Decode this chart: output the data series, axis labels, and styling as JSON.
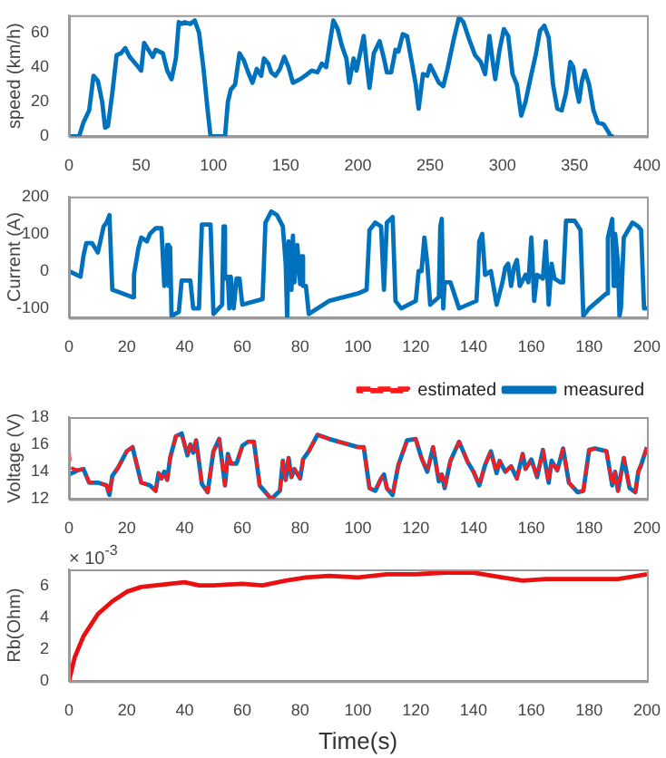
{
  "chart_data": [
    {
      "type": "line",
      "ylabel": "speed (km/h)",
      "xlim": [
        0,
        400
      ],
      "xticks": [
        0,
        50,
        100,
        150,
        200,
        250,
        300,
        350,
        400
      ],
      "ylim": [
        0,
        70
      ],
      "yticks": [
        0,
        20,
        40,
        60
      ],
      "marker": "none",
      "legend": false,
      "series": [
        {
          "color": "#0072bd",
          "line_style": "solid",
          "x": [
            0,
            7,
            10,
            14,
            17,
            20,
            23,
            25,
            27,
            30,
            33,
            36,
            39,
            42,
            45,
            48,
            50,
            52,
            55,
            58,
            60,
            65,
            68,
            71,
            74,
            76,
            78,
            80,
            84,
            87,
            90,
            93,
            96,
            98,
            108,
            110,
            112,
            115,
            118,
            121,
            124,
            127,
            130,
            133,
            135,
            138,
            140,
            143,
            146,
            149,
            152,
            155,
            160,
            165,
            168,
            172,
            175,
            178,
            180,
            183,
            186,
            189,
            192,
            194,
            197,
            199,
            202,
            204,
            206,
            208,
            211,
            215,
            218,
            220,
            223,
            226,
            228,
            231,
            234,
            237,
            240,
            242,
            245,
            248,
            250,
            253,
            256,
            259,
            262,
            266,
            270,
            273,
            277,
            281,
            285,
            288,
            291,
            293,
            295,
            298,
            301,
            304,
            307,
            310,
            313,
            316,
            319,
            323,
            326,
            329,
            332,
            335,
            338,
            341,
            344,
            347,
            349,
            351,
            353,
            355,
            357,
            360,
            363,
            366,
            370,
            373,
            375,
            377
          ],
          "values": [
            0,
            0,
            8,
            15,
            35,
            32,
            20,
            5,
            6,
            25,
            47,
            48,
            51,
            46,
            43,
            40,
            38,
            54,
            50,
            46,
            50,
            48,
            38,
            33,
            45,
            66,
            65,
            66,
            65,
            67,
            60,
            40,
            15,
            0,
            0,
            20,
            27,
            30,
            48,
            44,
            37,
            31,
            39,
            35,
            45,
            42,
            37,
            35,
            39,
            46,
            40,
            31,
            33,
            36,
            38,
            37,
            42,
            40,
            51,
            67,
            62,
            52,
            45,
            31,
            45,
            38,
            50,
            58,
            42,
            28,
            48,
            55,
            45,
            37,
            37,
            50,
            49,
            59,
            58,
            44,
            30,
            16,
            36,
            35,
            41,
            36,
            31,
            29,
            39,
            55,
            69,
            66,
            56,
            47,
            43,
            36,
            58,
            45,
            33,
            50,
            62,
            58,
            36,
            30,
            12,
            20,
            32,
            47,
            61,
            64,
            57,
            30,
            16,
            15,
            25,
            43,
            40,
            28,
            20,
            32,
            38,
            30,
            15,
            8,
            7,
            3,
            0,
            0
          ]
        }
      ]
    },
    {
      "type": "line",
      "ylabel": "Current (A)",
      "xlim": [
        0,
        200
      ],
      "xticks": [
        0,
        20,
        40,
        60,
        80,
        100,
        120,
        140,
        160,
        180,
        200
      ],
      "ylim": [
        -125,
        200
      ],
      "yticks": [
        -100,
        0,
        100,
        200
      ],
      "marker": "none",
      "legend": false,
      "series": [
        {
          "color": "#0072bd",
          "line_style": "solid",
          "x": [
            0,
            4,
            5,
            6,
            8,
            10,
            12,
            13,
            14,
            15,
            22,
            22.5,
            24,
            25,
            27,
            28,
            30,
            32,
            33,
            34,
            34.5,
            35,
            35.5,
            38,
            39,
            42,
            43,
            45,
            45.5,
            46,
            49,
            50,
            53,
            53.5,
            54,
            55,
            55.5,
            56,
            57,
            58,
            59,
            60,
            67,
            68,
            70,
            72,
            74,
            75,
            75.5,
            76,
            77,
            77.5,
            78,
            79,
            80,
            80.5,
            81,
            82,
            83,
            90,
            100,
            103,
            104,
            106,
            108,
            109,
            110,
            112,
            113,
            115,
            120,
            121,
            122,
            123,
            124,
            125,
            128,
            128.5,
            129,
            129.5,
            130,
            132,
            135,
            141,
            141.5,
            142,
            143,
            144,
            146,
            148,
            150,
            151,
            152,
            153,
            154,
            155,
            156,
            158,
            159,
            160,
            161,
            162,
            164,
            165,
            166,
            167,
            168,
            170,
            171,
            172,
            175,
            177,
            178,
            180,
            183,
            186,
            186.5,
            188,
            188.5,
            189,
            190,
            190.5,
            191,
            192,
            195,
            197,
            198,
            199,
            200
          ],
          "values": [
            0,
            -15,
            40,
            75,
            75,
            50,
            120,
            130,
            150,
            -50,
            -70,
            -10,
            60,
            90,
            80,
            100,
            115,
            115,
            -40,
            70,
            -40,
            65,
            -120,
            -110,
            -25,
            -25,
            -100,
            -100,
            20,
            125,
            125,
            -115,
            -90,
            120,
            -20,
            -15,
            -100,
            -15,
            -100,
            -20,
            -20,
            -90,
            -75,
            130,
            160,
            150,
            120,
            20,
            -125,
            80,
            -50,
            95,
            -30,
            70,
            -35,
            40,
            -40,
            -40,
            -115,
            -80,
            -60,
            -50,
            110,
            130,
            120,
            -50,
            130,
            145,
            -80,
            -100,
            -80,
            0,
            0,
            90,
            20,
            -90,
            -70,
            120,
            140,
            -100,
            -30,
            -30,
            -100,
            -80,
            -10,
            80,
            100,
            -10,
            0,
            -90,
            -30,
            10,
            20,
            -40,
            10,
            30,
            -40,
            -10,
            -30,
            90,
            -80,
            -10,
            -20,
            80,
            -90,
            20,
            -20,
            -30,
            -30,
            135,
            135,
            110,
            -120,
            -100,
            -80,
            -60,
            90,
            140,
            -40,
            100,
            20,
            -120,
            -100,
            90,
            130,
            120,
            110,
            -100,
            -100
          ]
        }
      ]
    },
    {
      "type": "line",
      "ylabel": "Voltage (V)",
      "xlim": [
        0,
        200
      ],
      "xticks": [
        0,
        20,
        40,
        60,
        80,
        100,
        120,
        140,
        160,
        180,
        200
      ],
      "ylim": [
        12,
        18
      ],
      "yticks": [
        12,
        14,
        16,
        18
      ],
      "marker": "none",
      "legend": "top right",
      "series": [
        {
          "name": "measured",
          "color": "#0072bd",
          "line_style": "solid",
          "x": [
            0,
            3,
            5,
            7,
            10,
            13,
            14,
            15,
            17,
            20,
            22,
            25,
            28,
            30,
            31,
            32,
            33,
            34,
            35,
            37,
            39,
            41,
            42,
            43,
            44,
            46,
            48,
            50,
            52,
            54,
            55,
            56,
            58,
            60,
            62,
            64,
            66,
            70,
            73,
            74,
            75,
            76,
            77,
            78,
            80,
            81,
            83,
            86,
            90,
            95,
            100,
            102,
            104,
            106,
            108,
            109,
            110,
            112,
            114,
            117,
            120,
            122,
            124,
            126,
            128,
            129,
            130,
            132,
            135,
            138,
            140,
            142,
            144,
            146,
            148,
            149,
            151,
            153,
            155,
            157,
            158,
            160,
            162,
            164,
            166,
            167,
            169,
            171,
            173,
            176,
            178,
            180,
            182,
            186,
            188,
            189,
            190,
            192,
            194,
            196,
            197,
            198,
            200
          ],
          "values": [
            13.8,
            14.1,
            14.2,
            13.2,
            13.2,
            13.0,
            12.3,
            13.7,
            14.3,
            15.5,
            15.8,
            13.2,
            13.0,
            12.6,
            13.9,
            13.5,
            14.0,
            13.4,
            15.0,
            16.6,
            16.8,
            15.2,
            16.0,
            15.4,
            16.3,
            13.1,
            12.5,
            15.5,
            16.4,
            13.0,
            15.3,
            14.6,
            14.6,
            15.9,
            16.2,
            16.2,
            13.0,
            12.0,
            12.6,
            14.8,
            13.4,
            15.0,
            13.6,
            14.2,
            13.5,
            14.9,
            15.5,
            16.7,
            16.4,
            16.1,
            15.8,
            15.8,
            12.8,
            12.6,
            13.5,
            13.8,
            12.8,
            12.3,
            14.5,
            16.3,
            16.4,
            15.0,
            14.0,
            15.8,
            13.3,
            13.8,
            12.8,
            14.8,
            16.2,
            14.7,
            14.0,
            13.0,
            14.5,
            15.5,
            13.9,
            14.8,
            14.0,
            14.4,
            13.5,
            15.3,
            14.2,
            14.9,
            13.6,
            15.6,
            13.2,
            14.8,
            14.1,
            15.7,
            13.2,
            12.5,
            12.6,
            15.6,
            15.7,
            15.5,
            13.0,
            14.0,
            12.6,
            15.0,
            12.8,
            12.5,
            14.0,
            14.5,
            15.8
          ]
        },
        {
          "name": "estimated",
          "color": "#ff1a1a",
          "line_style": "dashed",
          "x": [
            0,
            0.5,
            3,
            5,
            7,
            10,
            13,
            14,
            15,
            17,
            20,
            22,
            25,
            28,
            30,
            31,
            32,
            33,
            34,
            35,
            37,
            39,
            41,
            42,
            43,
            44,
            46,
            48,
            50,
            52,
            54,
            55,
            56,
            58,
            60,
            62,
            64,
            66,
            70,
            73,
            74,
            75,
            76,
            77,
            78,
            80,
            81,
            83,
            86,
            90,
            95,
            100,
            102,
            104,
            106,
            108,
            109,
            110,
            112,
            114,
            117,
            120,
            122,
            124,
            126,
            128,
            129,
            130,
            132,
            135,
            138,
            140,
            142,
            144,
            146,
            148,
            149,
            151,
            153,
            155,
            157,
            158,
            160,
            162,
            164,
            166,
            167,
            169,
            171,
            173,
            176,
            178,
            180,
            182,
            186,
            188,
            189,
            190,
            192,
            194,
            196,
            197,
            198,
            200
          ],
          "values": [
            15.7,
            14.3,
            14.1,
            14.2,
            13.2,
            13.2,
            13.0,
            12.3,
            13.7,
            14.3,
            15.5,
            15.8,
            13.2,
            13.0,
            12.6,
            13.9,
            13.5,
            14.0,
            13.4,
            15.0,
            16.6,
            16.8,
            15.2,
            16.0,
            15.4,
            16.3,
            13.1,
            12.5,
            15.5,
            16.4,
            13.0,
            15.3,
            14.6,
            14.6,
            15.9,
            16.2,
            16.2,
            13.0,
            12.0,
            12.6,
            14.8,
            13.4,
            15.0,
            13.6,
            14.2,
            13.5,
            14.9,
            15.5,
            16.7,
            16.4,
            16.1,
            15.8,
            15.8,
            12.8,
            12.6,
            13.5,
            13.8,
            12.8,
            12.3,
            14.5,
            16.3,
            16.4,
            15.0,
            14.0,
            15.8,
            13.3,
            13.8,
            12.8,
            14.8,
            16.2,
            14.7,
            14.0,
            13.0,
            14.5,
            15.5,
            13.9,
            14.8,
            14.0,
            14.4,
            13.5,
            15.3,
            14.2,
            14.9,
            13.6,
            15.6,
            13.2,
            14.8,
            14.1,
            15.7,
            13.2,
            12.5,
            12.6,
            15.6,
            15.7,
            15.5,
            13.0,
            14.0,
            12.6,
            15.0,
            12.8,
            12.5,
            14.0,
            14.5,
            15.8
          ]
        }
      ]
    },
    {
      "type": "line",
      "ylabel": "Rb(Ohm)",
      "xlabel": "Time(s)",
      "xlim": [
        0,
        200
      ],
      "xticks": [
        0,
        20,
        40,
        60,
        80,
        100,
        120,
        140,
        160,
        180,
        200
      ],
      "ylim": [
        0,
        7
      ],
      "yticks": [
        0,
        2,
        4,
        6
      ],
      "marker": "none",
      "legend": false,
      "annotations": [
        "× 10$^{-3}$"
      ],
      "series": [
        {
          "color": "#e81010",
          "line_style": "solid",
          "x": [
            0,
            2,
            5,
            10,
            15,
            20,
            25,
            30,
            40,
            45,
            50,
            60,
            67,
            75,
            82,
            90,
            100,
            110,
            120,
            130,
            140,
            150,
            157,
            165,
            180,
            190,
            200
          ],
          "values": [
            0,
            1.5,
            2.8,
            4.2,
            5.0,
            5.6,
            5.9,
            6.0,
            6.2,
            6.0,
            6.0,
            6.1,
            6.0,
            6.3,
            6.5,
            6.6,
            6.5,
            6.7,
            6.7,
            6.8,
            6.8,
            6.5,
            6.3,
            6.4,
            6.4,
            6.4,
            6.7
          ]
        }
      ]
    }
  ]
}
